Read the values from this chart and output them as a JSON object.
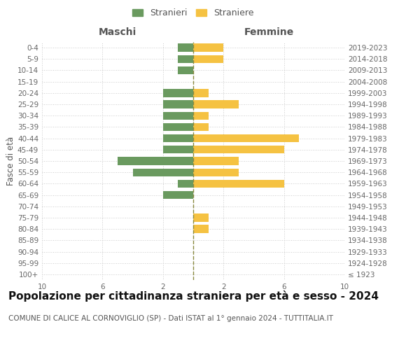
{
  "age_groups": [
    "100+",
    "95-99",
    "90-94",
    "85-89",
    "80-84",
    "75-79",
    "70-74",
    "65-69",
    "60-64",
    "55-59",
    "50-54",
    "45-49",
    "40-44",
    "35-39",
    "30-34",
    "25-29",
    "20-24",
    "15-19",
    "10-14",
    "5-9",
    "0-4"
  ],
  "birth_years": [
    "≤ 1923",
    "1924-1928",
    "1929-1933",
    "1934-1938",
    "1939-1943",
    "1944-1948",
    "1949-1953",
    "1954-1958",
    "1959-1963",
    "1964-1968",
    "1969-1973",
    "1974-1978",
    "1979-1983",
    "1984-1988",
    "1989-1993",
    "1994-1998",
    "1999-2003",
    "2004-2008",
    "2009-2013",
    "2014-2018",
    "2019-2023"
  ],
  "maschi": [
    0,
    0,
    0,
    0,
    0,
    0,
    0,
    2,
    1,
    4,
    5,
    2,
    2,
    2,
    2,
    2,
    2,
    0,
    1,
    1,
    1
  ],
  "femmine": [
    0,
    0,
    0,
    0,
    1,
    1,
    0,
    0,
    6,
    3,
    3,
    6,
    7,
    1,
    1,
    3,
    1,
    0,
    0,
    2,
    2
  ],
  "color_maschi": "#6a9a5f",
  "color_femmine": "#f5c242",
  "color_dashed": "#8a8a40",
  "xlim": 10,
  "title": "Popolazione per cittadinanza straniera per età e sesso - 2024",
  "subtitle": "COMUNE DI CALICE AL CORNOVIGLIO (SP) - Dati ISTAT al 1° gennaio 2024 - TUTTITALIA.IT",
  "legend_maschi": "Stranieri",
  "legend_femmine": "Straniere",
  "label_fascia": "Fasce di età",
  "label_maschi": "Maschi",
  "label_femmine": "Femmine",
  "bg_color": "#ffffff",
  "grid_color": "#cccccc",
  "bar_height": 0.7,
  "title_fontsize": 11,
  "subtitle_fontsize": 7.5,
  "axis_label_fontsize": 8.5,
  "tick_fontsize": 7.5,
  "legend_fontsize": 9
}
